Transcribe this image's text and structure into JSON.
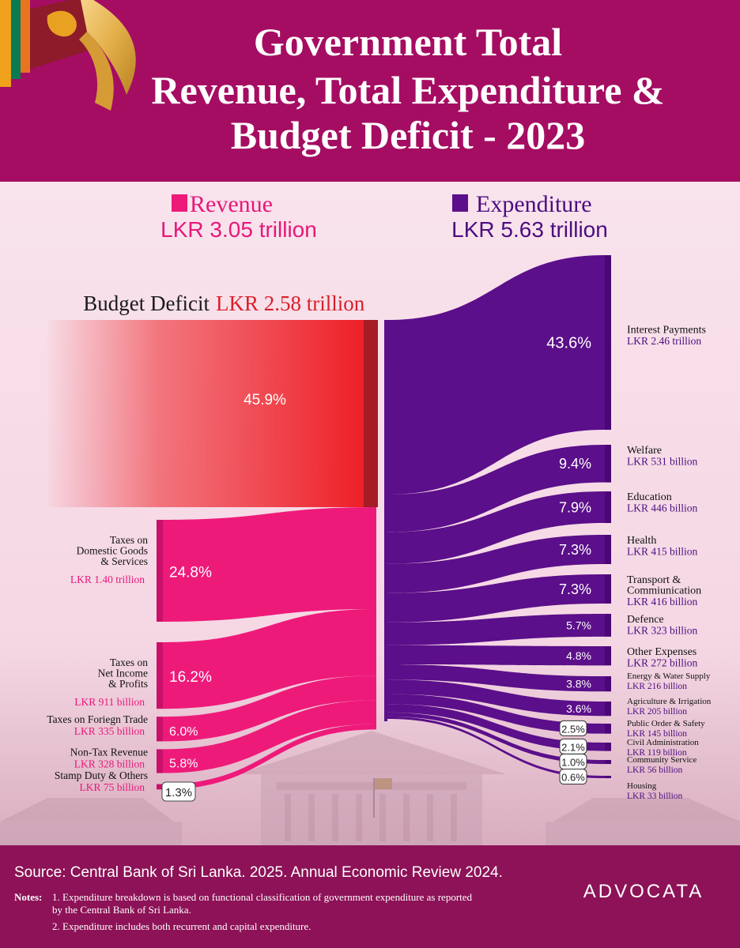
{
  "header": {
    "title_lines": [
      "Government Total",
      "Revenue, Total Expenditure &",
      "Budget Deficit - 2023"
    ]
  },
  "revenue": {
    "label": "Revenue",
    "amount": "LKR 3.05 trillion"
  },
  "expenditure": {
    "label": "Expenditure",
    "amount": "LKR 5.63 trillion"
  },
  "deficit": {
    "label": "Budget Deficit",
    "amount": "LKR 2.58 trillion",
    "percent": "45.9%"
  },
  "colors": {
    "header_bg": "#a50d62",
    "deficit_red": "#ee2027",
    "deficit_dark": "#a51c24",
    "revenue_pink": "#ee1a7a",
    "expenditure_purple": "#5b0f8a",
    "revenue_text": "#e8177a",
    "expenditure_text": "#4b0d80",
    "footer_bg": "#8d1257"
  },
  "chart_data": {
    "type": "sankey",
    "revenue_sources": [
      {
        "name_lines": [
          "Taxes on",
          "Domestic Goods",
          "& Services"
        ],
        "amount": "LKR 1.40 trillion",
        "percent": "24.8%",
        "value": 24.8
      },
      {
        "name_lines": [
          "Taxes on",
          "Net Income",
          "& Profits"
        ],
        "amount": "LKR 911 billion",
        "percent": "16.2%",
        "value": 16.2
      },
      {
        "name_lines": [
          "Taxes on Foriegn Trade"
        ],
        "amount": "LKR 335 billion",
        "percent": "6.0%",
        "value": 6.0
      },
      {
        "name_lines": [
          "Non-Tax Revenue"
        ],
        "amount": "LKR 328 billion",
        "percent": "5.8%",
        "value": 5.8
      },
      {
        "name_lines": [
          "Stamp Duty & Others"
        ],
        "amount": "LKR 75 billion",
        "percent": "1.3%",
        "value": 1.3
      }
    ],
    "expenditure_items": [
      {
        "name_lines": [
          "Interest Payments"
        ],
        "amount": "LKR 2.46 trillion",
        "percent": "43.6%",
        "value": 43.6
      },
      {
        "name_lines": [
          "Welfare"
        ],
        "amount": "LKR 531 billion",
        "percent": "9.4%",
        "value": 9.4
      },
      {
        "name_lines": [
          "Education"
        ],
        "amount": "LKR 446 billion",
        "percent": "7.9%",
        "value": 7.9
      },
      {
        "name_lines": [
          "Health"
        ],
        "amount": "LKR 415 billion",
        "percent": "7.3%",
        "value": 7.3
      },
      {
        "name_lines": [
          "Transport &",
          "Commiunication"
        ],
        "amount": "LKR 416 billion",
        "percent": "7.3%",
        "value": 7.3
      },
      {
        "name_lines": [
          "Defence"
        ],
        "amount": "LKR 323 billion",
        "percent": "5.7%",
        "value": 5.7
      },
      {
        "name_lines": [
          "Other Expenses"
        ],
        "amount": "LKR 272 billion",
        "percent": "4.8%",
        "value": 4.8
      },
      {
        "name_lines": [
          "Energy & Water Supply"
        ],
        "amount": "LKR 216 billion",
        "percent": "3.8%",
        "value": 3.8
      },
      {
        "name_lines": [
          "Agriculture & Irrigation"
        ],
        "amount": "LKR 205 billion",
        "percent": "3.6%",
        "value": 3.6
      },
      {
        "name_lines": [
          "Public Order & Safety"
        ],
        "amount": "LKR 145 billion",
        "percent": "2.5%",
        "value": 2.5
      },
      {
        "name_lines": [
          "Civil Administration"
        ],
        "amount": "LKR 119 billion",
        "percent": "2.1%",
        "value": 2.1
      },
      {
        "name_lines": [
          "Community Service"
        ],
        "amount": "LKR 56 billion",
        "percent": "1.0%",
        "value": 1.0
      },
      {
        "name_lines": [
          "Housing"
        ],
        "amount": "LKR 33 billion",
        "percent": "0.6%",
        "value": 0.6
      }
    ]
  },
  "footer": {
    "source": "Source: Central Bank of Sri Lanka. 2025. Annual Economic Review 2024.",
    "notes_label": "Notes:",
    "note1_lines": [
      "1. Expenditure breakdown is based on functional classification of government expenditure as reported",
      "by the Central Bank of Sri Lanka."
    ],
    "note2": "2. Expenditure includes both recurrent and capital expenditure.",
    "logo_text": "ADVOCATA"
  }
}
